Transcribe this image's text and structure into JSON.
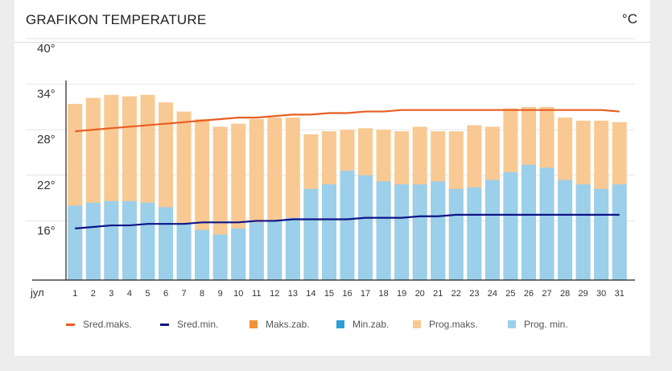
{
  "header": {
    "title": "GRAFIKON TEMPERATURE",
    "unit": "°C"
  },
  "chart_data": {
    "type": "bar",
    "x_label": "јул",
    "categories": [
      "1",
      "2",
      "3",
      "4",
      "5",
      "6",
      "7",
      "8",
      "9",
      "10",
      "11",
      "12",
      "13",
      "14",
      "15",
      "16",
      "17",
      "18",
      "19",
      "20",
      "21",
      "22",
      "23",
      "24",
      "25",
      "26",
      "27",
      "28",
      "29",
      "30",
      "31"
    ],
    "y_ticks": [
      "40°",
      "34°",
      "28°",
      "22°",
      "16°"
    ],
    "y_tick_values": [
      40,
      34,
      28,
      22,
      16
    ],
    "ylim": [
      10,
      40
    ],
    "grid": true,
    "series": [
      {
        "name": "Prog.maks.",
        "kind": "bar",
        "color": "#f9c993",
        "values": [
          33.2,
          34.0,
          34.4,
          34.2,
          34.4,
          33.4,
          32.2,
          31.2,
          30.2,
          30.6,
          31.2,
          31.4,
          31.4,
          29.2,
          29.6,
          29.8,
          30.0,
          29.8,
          29.6,
          30.2,
          29.6,
          29.6,
          30.4,
          30.2,
          32.6,
          32.8,
          32.8,
          31.4,
          31.0,
          31.0,
          30.8
        ]
      },
      {
        "name": "Prog. min.",
        "kind": "bar",
        "color": "#9bcfea",
        "values": [
          19.8,
          20.2,
          20.4,
          20.4,
          20.2,
          19.6,
          17.4,
          16.6,
          16.0,
          16.8,
          17.6,
          17.8,
          18.2,
          22.0,
          22.6,
          24.4,
          23.8,
          23.0,
          22.6,
          22.6,
          23.0,
          22.0,
          22.2,
          23.2,
          24.2,
          25.2,
          24.8,
          23.2,
          22.6,
          22.0,
          22.6
        ]
      },
      {
        "name": "Sred.maks.",
        "kind": "line",
        "color": "#e85e22",
        "values": [
          29.6,
          29.8,
          30.0,
          30.2,
          30.4,
          30.6,
          30.8,
          31.0,
          31.2,
          31.4,
          31.4,
          31.6,
          31.8,
          31.8,
          32.0,
          32.0,
          32.2,
          32.2,
          32.4,
          32.4,
          32.4,
          32.4,
          32.4,
          32.4,
          32.4,
          32.4,
          32.4,
          32.4,
          32.4,
          32.4,
          32.2
        ]
      },
      {
        "name": "Sred.min.",
        "kind": "line",
        "color": "#0e1487",
        "values": [
          16.8,
          17.0,
          17.2,
          17.2,
          17.4,
          17.4,
          17.4,
          17.6,
          17.6,
          17.6,
          17.8,
          17.8,
          18.0,
          18.0,
          18.0,
          18.0,
          18.2,
          18.2,
          18.2,
          18.4,
          18.4,
          18.6,
          18.6,
          18.6,
          18.6,
          18.6,
          18.6,
          18.6,
          18.6,
          18.6,
          18.6
        ]
      }
    ],
    "legend": [
      {
        "label": "Sred.maks.",
        "style": "line",
        "color": "#e85e22"
      },
      {
        "label": "Sred.min.",
        "style": "line",
        "color": "#0e1487"
      },
      {
        "label": "Maks.zab.",
        "style": "box",
        "color": "#f0923a"
      },
      {
        "label": "Min.zab.",
        "style": "box",
        "color": "#2e9fd6"
      },
      {
        "label": "Prog.maks.",
        "style": "box",
        "color": "#f9c993"
      },
      {
        "label": "Prog. min.",
        "style": "box",
        "color": "#9bcfea"
      }
    ]
  }
}
